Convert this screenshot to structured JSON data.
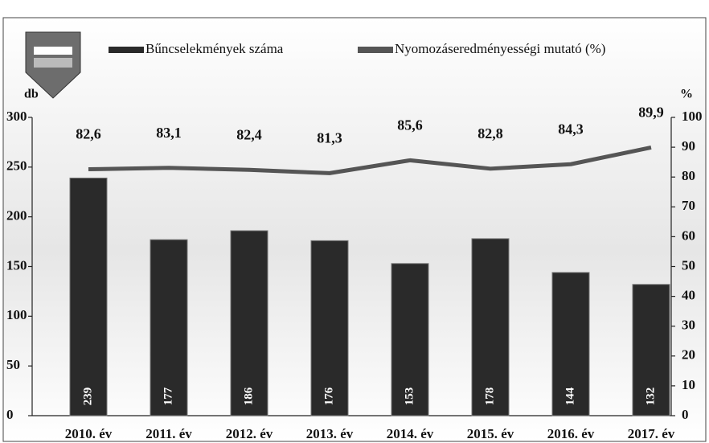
{
  "chart_data": {
    "type": "bar_line",
    "categories": [
      "2010. év",
      "2011. év",
      "2012. év",
      "2013. év",
      "2014. év",
      "2015. év",
      "2016. év",
      "2017. év"
    ],
    "series": [
      {
        "name": "Bűncselekmények száma",
        "color": "#2a2a2a",
        "type": "bar",
        "axis": "y",
        "values": [
          239,
          177,
          186,
          176,
          153,
          178,
          144,
          132
        ]
      },
      {
        "name": "Nyomozáseredményességi mutató (%)",
        "color": "#555555",
        "type": "line",
        "axis": "y2",
        "values": [
          82.6,
          83.1,
          82.4,
          81.3,
          85.6,
          82.8,
          84.3,
          89.9
        ],
        "value_labels": [
          "82,6",
          "83,1",
          "82,4",
          "81,3",
          "85,6",
          "82,8",
          "84,3",
          "89,9"
        ]
      }
    ],
    "ylabel": "db",
    "y2label": "%",
    "ylim": [
      0,
      300
    ],
    "yticks": [
      0,
      50,
      100,
      150,
      200,
      250,
      300
    ],
    "y2lim": [
      0,
      100
    ],
    "y2ticks": [
      0,
      10,
      20,
      30,
      40,
      50,
      60,
      70,
      80,
      90,
      100
    ]
  }
}
